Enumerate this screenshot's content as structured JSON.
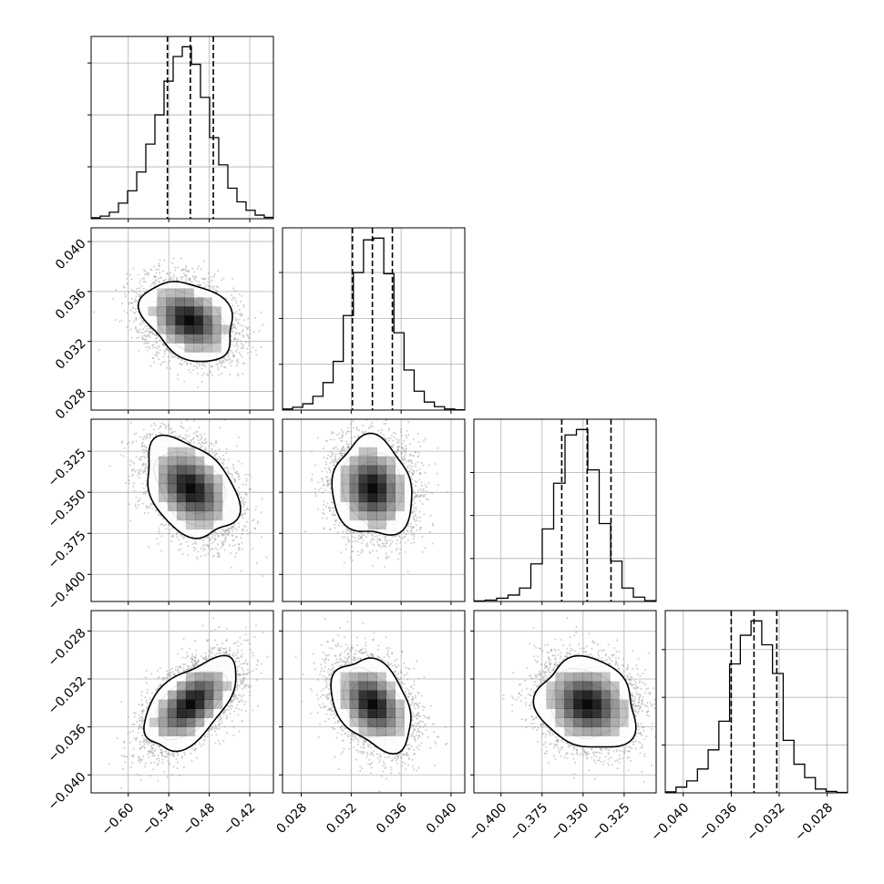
{
  "chart_data": {
    "type": "corner",
    "title": "",
    "parameters": [
      {
        "label": "",
        "range": [
          -0.655,
          -0.385
        ],
        "ticks": [
          "−0.60",
          "−0.54",
          "−0.48",
          "−0.42"
        ],
        "tick_values": [
          -0.6,
          -0.54,
          -0.48,
          -0.42
        ],
        "quantiles": [
          -0.542,
          -0.508,
          -0.474
        ],
        "hist_max": 2650,
        "hist_ticks": [
          800,
          1600,
          2400
        ],
        "hist_counts": [
          15,
          40,
          100,
          240,
          430,
          720,
          1150,
          1600,
          2120,
          2500,
          2650,
          2380,
          1870,
          1250,
          830,
          470,
          260,
          130,
          55,
          20
        ]
      },
      {
        "label": "",
        "range": [
          0.0265,
          0.0411
        ],
        "ticks": [
          "0.028",
          "0.032",
          "0.036",
          "0.040"
        ],
        "tick_values": [
          0.028,
          0.032,
          0.036,
          0.04
        ],
        "quantiles": [
          0.0321,
          0.0337,
          0.0353
        ],
        "hist_max": 3000,
        "hist_ticks": [
          800,
          1600,
          2400
        ],
        "hist_counts": [
          20,
          50,
          110,
          240,
          480,
          850,
          1650,
          2400,
          2970,
          3000,
          2380,
          1350,
          700,
          330,
          140,
          60,
          20,
          5
        ]
      },
      {
        "label": "",
        "range": [
          -0.4165,
          -0.3055
        ],
        "ticks": [
          "−0.400",
          "−0.375",
          "−0.350",
          "−0.325"
        ],
        "tick_values": [
          -0.4,
          -0.375,
          -0.35,
          -0.325
        ],
        "quantiles": [
          -0.363,
          -0.3475,
          -0.333
        ],
        "hist_max": 3200,
        "hist_ticks": [
          800,
          1600,
          2400
        ],
        "hist_counts": [
          10,
          25,
          60,
          120,
          250,
          700,
          1350,
          2200,
          3100,
          3200,
          2450,
          1450,
          750,
          250,
          80,
          15
        ]
      },
      {
        "label": "",
        "range": [
          -0.0415,
          -0.0263
        ],
        "ticks": [
          "−0.040",
          "−0.036",
          "−0.032",
          "−0.028"
        ],
        "tick_values": [
          -0.04,
          -0.036,
          -0.032,
          -0.028
        ],
        "quantiles": [
          -0.036,
          -0.0341,
          -0.0322
        ],
        "hist_max": 3600,
        "hist_ticks": [
          1000,
          2000,
          3000
        ],
        "hist_counts": [
          20,
          120,
          250,
          500,
          900,
          1500,
          2700,
          3300,
          3600,
          3100,
          2500,
          1100,
          600,
          320,
          80,
          30,
          10
        ]
      }
    ],
    "pairs": [
      {
        "x": 0,
        "y": 1,
        "center": [
          -0.51,
          0.0337
        ],
        "corr": -0.3
      },
      {
        "x": 0,
        "y": 2,
        "center": [
          -0.508,
          -0.3475
        ],
        "corr": -0.35
      },
      {
        "x": 1,
        "y": 2,
        "center": [
          0.0337,
          -0.3475
        ],
        "corr": -0.1
      },
      {
        "x": 0,
        "y": 3,
        "center": [
          -0.508,
          -0.0341
        ],
        "corr": 0.55
      },
      {
        "x": 1,
        "y": 3,
        "center": [
          0.0337,
          -0.0341
        ],
        "corr": -0.35
      },
      {
        "x": 2,
        "y": 3,
        "center": [
          -0.3475,
          -0.0341
        ],
        "corr": -0.15
      }
    ],
    "colors": {
      "axes": "#000000",
      "grid": "#b0b0b0",
      "points": "#999999",
      "density": "#000000"
    }
  }
}
